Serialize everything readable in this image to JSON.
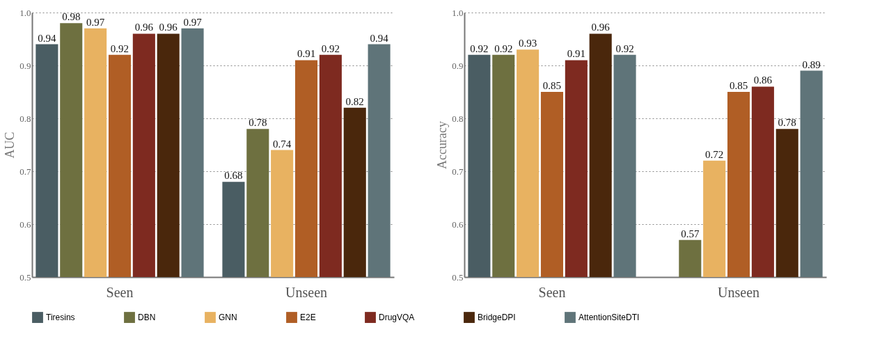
{
  "chart_data": [
    {
      "type": "bar",
      "ylabel": "AUC",
      "categories": [
        "Seen",
        "Unseen"
      ],
      "ylim": [
        0.5,
        1.0
      ],
      "yticks": [
        0.5,
        0.6,
        0.7,
        0.8,
        0.9,
        {
          "value": 1,
          "label": "1.0"
        }
      ],
      "grid": "y",
      "data_labels": true,
      "legend": "bottom",
      "series": [
        {
          "name": "Tiresins",
          "color": "#4a5d63",
          "values": [
            0.94,
            0.68
          ]
        },
        {
          "name": "DBN",
          "color": "#6e7040",
          "values": [
            0.98,
            0.78
          ]
        },
        {
          "name": "GNN",
          "color": "#e8b261",
          "values": [
            0.97,
            0.74
          ]
        },
        {
          "name": "E2E",
          "color": "#b05e25",
          "values": [
            0.92,
            0.91
          ]
        },
        {
          "name": "DrugVQA",
          "color": "#7e2a20",
          "values": [
            0.96,
            0.92
          ]
        },
        {
          "name": "BridgeDPI",
          "color": "#4a270c",
          "values": [
            0.96,
            0.82
          ]
        },
        {
          "name": "AttentionSiteDTI",
          "color": "#5f7479",
          "values": [
            0.97,
            0.94
          ]
        }
      ]
    },
    {
      "type": "bar",
      "ylabel": "Accuracy",
      "categories": [
        "Seen",
        "Unseen"
      ],
      "ylim": [
        0.5,
        1.0
      ],
      "yticks": [
        0.5,
        0.6,
        0.7,
        0.8,
        0.9,
        {
          "value": 1,
          "label": "1.0"
        }
      ],
      "grid": "y",
      "data_labels": true,
      "legend": "bottom",
      "series": [
        {
          "name": "Tiresins",
          "color": "#4a5d63",
          "values": [
            0.92,
            null
          ]
        },
        {
          "name": "DBN",
          "color": "#6e7040",
          "values": [
            0.92,
            0.57
          ]
        },
        {
          "name": "GNN",
          "color": "#e8b261",
          "values": [
            0.93,
            0.72
          ]
        },
        {
          "name": "E2E",
          "color": "#b05e25",
          "values": [
            0.85,
            0.85
          ]
        },
        {
          "name": "DrugVQA",
          "color": "#7e2a20",
          "values": [
            0.91,
            0.86
          ]
        },
        {
          "name": "BridgeDPI",
          "color": "#4a270c",
          "values": [
            0.96,
            0.78
          ]
        },
        {
          "name": "AttentionSiteDTI",
          "color": "#5f7479",
          "values": [
            0.92,
            0.89
          ]
        }
      ]
    }
  ]
}
